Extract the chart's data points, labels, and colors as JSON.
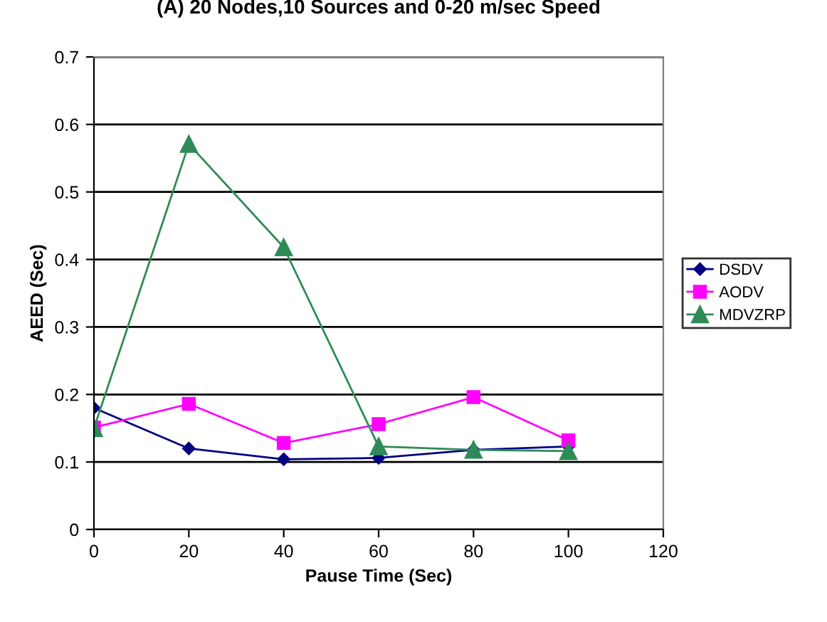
{
  "chart_data": {
    "type": "line",
    "title": "(A) 20 Nodes,10 Sources and 0-20 m/sec Speed",
    "xlabel": "Pause Time (Sec)",
    "ylabel": "AEED (Sec)",
    "x": [
      0,
      20,
      40,
      60,
      80,
      100
    ],
    "series": [
      {
        "name": "DSDV",
        "color": "#000080",
        "marker": "diamond",
        "values": [
          0.18,
          0.12,
          0.104,
          0.106,
          0.118,
          0.123
        ]
      },
      {
        "name": "AODV",
        "color": "#ff00ff",
        "marker": "square",
        "values": [
          0.151,
          0.186,
          0.128,
          0.156,
          0.196,
          0.132
        ]
      },
      {
        "name": "MDVZRP",
        "color": "#2e8b57",
        "marker": "triangle",
        "values": [
          0.15,
          0.571,
          0.418,
          0.123,
          0.118,
          0.116
        ]
      }
    ],
    "xlim": [
      0,
      120
    ],
    "xticks": [
      0,
      20,
      40,
      60,
      80,
      100,
      120
    ],
    "ylim": [
      0,
      0.7
    ],
    "yticks": [
      0,
      0.1,
      0.2,
      0.3,
      0.4,
      0.5,
      0.6,
      0.7
    ],
    "grid": "y",
    "legend": "right"
  }
}
